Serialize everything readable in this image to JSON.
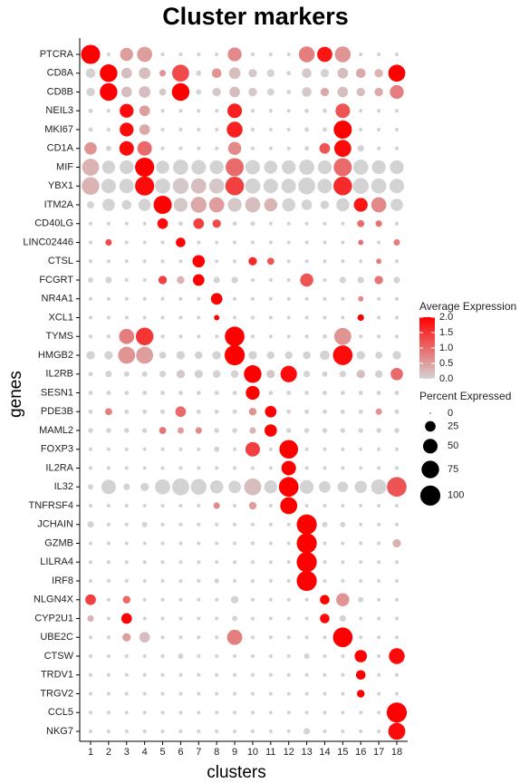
{
  "chart_data": {
    "type": "dotplot",
    "title": "Cluster markers",
    "x_label": "clusters",
    "y_label": "genes",
    "categories": [
      "1",
      "2",
      "3",
      "4",
      "5",
      "6",
      "7",
      "8",
      "9",
      "10",
      "11",
      "12",
      "13",
      "14",
      "15",
      "16",
      "17",
      "18"
    ],
    "genes": [
      "PTCRA",
      "CD8A",
      "CD8B",
      "NEIL3",
      "MKI67",
      "CD1A",
      "MIF",
      "YBX1",
      "ITM2A",
      "CD40LG",
      "LINC02446",
      "CTSL",
      "FCGRT",
      "NR4A1",
      "XCL1",
      "TYMS",
      "HMGB2",
      "IL2RB",
      "SESN1",
      "PDE3B",
      "MAML2",
      "FOXP3",
      "IL2RA",
      "IL32",
      "TNFRSF4",
      "JCHAIN",
      "GZMB",
      "LILRA4",
      "IRF8",
      "NLGN4X",
      "CYP2U1",
      "UBE2C",
      "CTSW",
      "TRDV1",
      "TRGV2",
      "CCL5",
      "NKG7"
    ],
    "percent": [
      [
        90,
        2,
        40,
        55,
        2,
        2,
        2,
        2,
        45,
        2,
        2,
        2,
        60,
        55,
        60,
        2,
        2,
        2
      ],
      [
        20,
        75,
        25,
        30,
        8,
        70,
        5,
        20,
        30,
        15,
        12,
        3,
        20,
        15,
        25,
        20,
        15,
        70
      ],
      [
        15,
        75,
        25,
        30,
        10,
        75,
        5,
        15,
        25,
        15,
        10,
        3,
        20,
        15,
        25,
        15,
        15,
        45
      ],
      [
        3,
        2,
        45,
        25,
        2,
        2,
        2,
        2,
        50,
        2,
        2,
        2,
        3,
        3,
        50,
        2,
        2,
        2
      ],
      [
        3,
        2,
        45,
        25,
        2,
        2,
        2,
        2,
        60,
        2,
        2,
        2,
        3,
        3,
        80,
        2,
        2,
        2
      ],
      [
        35,
        5,
        50,
        50,
        2,
        2,
        2,
        2,
        40,
        2,
        2,
        2,
        3,
        25,
        70,
        8,
        2,
        2
      ],
      [
        70,
        40,
        45,
        90,
        40,
        55,
        50,
        45,
        80,
        50,
        40,
        45,
        55,
        45,
        80,
        55,
        45,
        45
      ],
      [
        75,
        50,
        50,
        90,
        55,
        60,
        55,
        55,
        85,
        55,
        50,
        50,
        70,
        50,
        85,
        60,
        55,
        50
      ],
      [
        10,
        35,
        20,
        35,
        80,
        45,
        60,
        55,
        45,
        55,
        40,
        40,
        25,
        15,
        40,
        45,
        55,
        35
      ],
      [
        2,
        2,
        2,
        2,
        25,
        3,
        25,
        15,
        3,
        3,
        2,
        2,
        2,
        2,
        2,
        10,
        8,
        2
      ],
      [
        2,
        8,
        2,
        2,
        2,
        20,
        2,
        2,
        2,
        2,
        2,
        2,
        2,
        2,
        2,
        5,
        2,
        8
      ],
      [
        2,
        2,
        2,
        2,
        2,
        2,
        35,
        2,
        2,
        15,
        10,
        2,
        2,
        2,
        2,
        2,
        5,
        2
      ],
      [
        5,
        8,
        2,
        2,
        15,
        12,
        30,
        8,
        8,
        2,
        2,
        2,
        40,
        2,
        8,
        8,
        15,
        8
      ],
      [
        2,
        2,
        2,
        2,
        2,
        2,
        2,
        30,
        2,
        2,
        2,
        2,
        2,
        2,
        2,
        5,
        2,
        2
      ],
      [
        2,
        2,
        2,
        2,
        2,
        2,
        2,
        5,
        2,
        2,
        2,
        2,
        2,
        2,
        2,
        8,
        2,
        2
      ],
      [
        2,
        2,
        55,
        75,
        2,
        2,
        2,
        2,
        95,
        2,
        2,
        2,
        2,
        3,
        70,
        2,
        2,
        2
      ],
      [
        15,
        15,
        70,
        70,
        10,
        15,
        12,
        15,
        100,
        15,
        12,
        12,
        12,
        20,
        95,
        15,
        10,
        15
      ],
      [
        3,
        8,
        5,
        5,
        8,
        15,
        15,
        12,
        12,
        75,
        15,
        65,
        8,
        5,
        8,
        15,
        12,
        35
      ],
      [
        3,
        3,
        3,
        3,
        3,
        3,
        3,
        3,
        3,
        45,
        3,
        3,
        3,
        3,
        3,
        3,
        3,
        3
      ],
      [
        3,
        10,
        3,
        3,
        3,
        25,
        3,
        3,
        3,
        12,
        30,
        3,
        3,
        3,
        3,
        3,
        8,
        3
      ],
      [
        4,
        4,
        4,
        4,
        10,
        8,
        8,
        4,
        4,
        8,
        35,
        4,
        4,
        4,
        4,
        4,
        4,
        4
      ],
      [
        2,
        2,
        2,
        2,
        2,
        2,
        2,
        5,
        2,
        50,
        2,
        85,
        2,
        2,
        2,
        2,
        2,
        2
      ],
      [
        2,
        2,
        2,
        2,
        2,
        2,
        2,
        2,
        2,
        2,
        2,
        50,
        2,
        2,
        2,
        2,
        2,
        2
      ],
      [
        5,
        50,
        8,
        15,
        55,
        70,
        60,
        40,
        35,
        70,
        40,
        95,
        45,
        30,
        25,
        35,
        55,
        95
      ],
      [
        2,
        2,
        2,
        2,
        2,
        2,
        2,
        8,
        2,
        12,
        2,
        70,
        2,
        2,
        2,
        2,
        2,
        2
      ],
      [
        8,
        2,
        2,
        5,
        2,
        2,
        2,
        2,
        2,
        2,
        2,
        2,
        100,
        5,
        5,
        2,
        2,
        2
      ],
      [
        2,
        2,
        2,
        2,
        2,
        2,
        2,
        2,
        2,
        2,
        2,
        2,
        100,
        2,
        2,
        2,
        2,
        15
      ],
      [
        2,
        2,
        2,
        2,
        2,
        2,
        2,
        2,
        2,
        2,
        2,
        2,
        100,
        2,
        2,
        2,
        2,
        2
      ],
      [
        2,
        2,
        2,
        2,
        2,
        2,
        2,
        4,
        2,
        2,
        2,
        2,
        100,
        2,
        2,
        2,
        2,
        2
      ],
      [
        25,
        2,
        12,
        2,
        2,
        2,
        2,
        2,
        12,
        2,
        2,
        2,
        2,
        20,
        40,
        5,
        2,
        2
      ],
      [
        8,
        2,
        25,
        2,
        2,
        2,
        2,
        2,
        5,
        2,
        2,
        2,
        2,
        20,
        8,
        2,
        2,
        2
      ],
      [
        2,
        2,
        15,
        25,
        2,
        2,
        2,
        2,
        55,
        2,
        2,
        2,
        2,
        2,
        95,
        2,
        2,
        2
      ],
      [
        2,
        2,
        2,
        2,
        2,
        5,
        2,
        2,
        2,
        2,
        2,
        2,
        5,
        2,
        2,
        35,
        2,
        60
      ],
      [
        2,
        2,
        2,
        2,
        2,
        2,
        2,
        2,
        2,
        2,
        2,
        2,
        2,
        2,
        2,
        20,
        2,
        2
      ],
      [
        2,
        2,
        2,
        2,
        2,
        2,
        2,
        2,
        2,
        2,
        2,
        2,
        2,
        2,
        2,
        12,
        2,
        2
      ],
      [
        2,
        2,
        2,
        2,
        2,
        2,
        2,
        2,
        2,
        2,
        2,
        2,
        2,
        2,
        2,
        2,
        2,
        100
      ],
      [
        2,
        2,
        2,
        2,
        2,
        2,
        2,
        2,
        2,
        2,
        2,
        2,
        8,
        2,
        2,
        2,
        2,
        70
      ]
    ],
    "expression": [
      [
        2,
        0,
        0.5,
        0.5,
        0,
        0,
        0,
        0,
        0.7,
        0,
        0,
        0,
        0.8,
        1.8,
        0.6,
        0,
        0,
        0
      ],
      [
        0,
        2,
        0.2,
        0.2,
        0.6,
        1.3,
        0,
        0.6,
        0.2,
        0.1,
        0,
        0,
        0.1,
        0,
        0.2,
        0.4,
        0.3,
        2
      ],
      [
        0,
        2,
        0.2,
        0.2,
        0.1,
        2,
        0,
        0.1,
        0.2,
        0.1,
        0,
        0,
        0.1,
        0.4,
        0.2,
        0.2,
        0.4,
        0.8
      ],
      [
        0,
        0,
        1.9,
        0.5,
        0,
        0,
        0,
        0,
        1.7,
        0,
        0,
        0,
        0,
        0,
        1.2,
        0,
        0,
        0
      ],
      [
        0,
        0,
        1.9,
        0.4,
        0,
        0,
        0,
        0,
        1.7,
        0,
        0,
        0,
        0,
        0,
        2,
        0,
        0,
        0
      ],
      [
        0.6,
        0,
        1.9,
        1,
        0,
        0,
        0,
        0,
        0.7,
        0,
        0,
        0,
        0,
        1.2,
        1.9,
        0,
        0,
        0
      ],
      [
        0.3,
        0,
        0,
        2,
        0,
        0,
        0,
        0,
        1,
        0,
        0,
        0,
        0,
        0,
        1,
        0,
        0,
        0
      ],
      [
        0.3,
        0,
        0,
        1.9,
        0,
        0.1,
        0.2,
        0.1,
        1.4,
        0,
        0,
        0,
        0,
        0,
        1.6,
        0,
        0,
        0
      ],
      [
        0,
        0,
        0,
        0,
        2,
        0.1,
        0.4,
        0.5,
        0.1,
        0.2,
        0.3,
        0,
        0,
        0,
        0,
        1.8,
        0.7,
        0
      ],
      [
        0,
        0,
        0,
        0,
        1.9,
        0,
        1.4,
        1.3,
        0,
        0,
        0,
        0,
        0,
        0,
        0,
        1,
        0.9,
        0
      ],
      [
        0,
        1.3,
        0,
        0,
        0,
        2,
        0,
        0,
        0,
        0,
        0,
        0,
        0,
        0,
        0,
        0.9,
        0,
        0.8
      ],
      [
        0,
        0,
        0,
        0,
        0,
        0,
        2,
        0,
        0,
        1.6,
        1.2,
        0,
        0,
        0,
        0,
        0,
        0.8,
        0
      ],
      [
        0,
        0,
        0,
        0,
        1.4,
        0.3,
        2,
        0,
        0,
        0,
        0,
        0,
        1.2,
        0,
        0,
        0,
        0.9,
        0
      ],
      [
        0,
        0,
        0,
        0,
        0,
        0,
        0,
        2,
        0,
        0,
        0,
        0,
        0,
        0,
        0,
        0.7,
        0,
        0
      ],
      [
        0,
        0,
        0,
        0,
        0,
        0,
        0,
        2,
        0,
        0,
        0,
        0,
        0,
        0,
        0,
        2,
        0,
        0
      ],
      [
        0,
        0,
        0.8,
        1.5,
        0,
        0,
        0,
        0,
        2,
        0,
        0,
        0,
        0,
        0,
        0.6,
        0,
        0,
        0
      ],
      [
        0,
        0,
        0.6,
        0.5,
        0,
        0,
        0,
        0,
        2,
        0,
        0,
        0,
        0,
        0,
        1.9,
        0,
        0,
        0
      ],
      [
        0,
        0,
        0,
        0,
        0,
        0.1,
        0,
        0,
        0,
        2,
        0.1,
        1.9,
        0,
        0,
        0,
        0.2,
        0,
        1
      ],
      [
        0,
        0,
        0,
        0,
        0,
        0,
        0,
        0,
        0,
        2,
        0,
        0,
        0,
        0,
        0,
        0,
        0,
        0
      ],
      [
        0,
        0.8,
        0,
        0,
        0,
        1,
        0,
        0,
        0,
        0.6,
        2,
        0,
        0,
        0,
        0,
        0,
        0.6,
        0
      ],
      [
        0,
        0,
        0,
        0,
        0.9,
        0.5,
        0.7,
        0,
        0,
        0.3,
        2,
        0,
        0,
        0,
        0,
        0,
        0,
        0
      ],
      [
        0,
        0,
        0,
        0,
        0,
        0,
        0,
        0,
        0,
        1.4,
        0,
        2,
        0,
        0,
        0,
        0,
        0,
        0
      ],
      [
        0,
        0,
        0,
        0,
        0,
        0,
        0,
        0,
        0,
        0,
        0,
        2,
        0,
        0,
        0,
        0,
        0,
        0
      ],
      [
        0,
        0,
        0,
        0,
        0,
        0,
        0,
        0,
        0,
        0.2,
        0,
        2,
        0,
        0,
        0,
        0,
        0,
        1.2
      ],
      [
        0,
        0,
        0,
        0,
        0,
        0,
        0,
        0.7,
        0,
        0.5,
        0,
        2,
        0,
        0,
        0,
        0,
        0,
        0
      ],
      [
        0,
        0,
        0,
        0,
        0,
        0,
        0,
        0,
        0,
        0,
        0,
        0,
        2,
        0,
        0,
        0,
        0,
        0
      ],
      [
        0,
        0,
        0,
        0,
        0,
        0,
        0,
        0,
        0,
        0,
        0,
        0,
        2,
        0,
        0,
        0,
        0,
        0.3
      ],
      [
        0,
        0,
        0,
        0,
        0,
        0,
        0,
        0,
        0,
        0,
        0,
        0,
        2,
        0,
        0,
        0,
        0,
        0
      ],
      [
        0,
        0,
        0,
        0,
        0,
        0,
        0,
        0,
        0,
        0,
        0,
        0,
        2,
        0,
        0,
        0,
        0,
        0
      ],
      [
        1.4,
        0,
        1,
        0,
        0,
        0,
        0,
        0,
        0,
        0,
        0,
        0,
        0,
        2,
        0.6,
        0,
        0,
        0
      ],
      [
        0.3,
        0,
        2,
        0,
        0,
        0,
        0,
        0,
        0,
        0,
        0,
        0,
        0,
        1.9,
        0,
        0,
        0,
        0
      ],
      [
        0,
        0,
        0.5,
        0.2,
        0,
        0,
        0,
        0,
        0.8,
        0,
        0,
        0,
        0,
        0,
        2,
        0,
        0,
        0
      ],
      [
        0,
        0,
        0,
        0,
        0,
        0,
        0,
        0,
        0,
        0,
        0,
        0,
        0,
        0,
        0,
        2,
        0,
        1.9
      ],
      [
        0,
        0,
        0,
        0,
        0,
        0,
        0,
        0,
        0,
        0,
        0,
        0,
        0,
        0,
        0,
        2,
        0,
        0
      ],
      [
        0,
        0,
        0,
        0,
        0,
        0,
        0,
        0,
        0,
        0,
        0,
        0,
        0,
        0,
        0,
        2,
        0,
        0
      ],
      [
        0,
        0,
        0,
        0,
        0,
        0,
        0,
        0,
        0,
        0,
        0,
        0,
        0,
        0,
        0,
        0,
        0,
        2
      ],
      [
        0,
        0,
        0,
        0,
        0,
        0,
        0,
        0,
        0,
        0,
        0,
        0,
        0,
        0,
        0,
        0,
        0,
        1.9
      ]
    ],
    "color_legend": {
      "title": "Average Expression",
      "lim": [
        0,
        2
      ],
      "low": "#d3d3d3",
      "high": "#ff0000",
      "ticks": [
        {
          "value": 0,
          "label": "0.0"
        },
        {
          "value": 0.5,
          "label": "0.5"
        },
        {
          "value": 1,
          "label": "1.0"
        },
        {
          "value": 1.5,
          "label": "1.5"
        },
        {
          "value": 2,
          "label": "2.0"
        }
      ]
    },
    "size_legend": {
      "title": "Percent Expressed",
      "lim": [
        0,
        100
      ],
      "ticks": [
        0,
        25,
        50,
        75,
        100
      ]
    }
  }
}
